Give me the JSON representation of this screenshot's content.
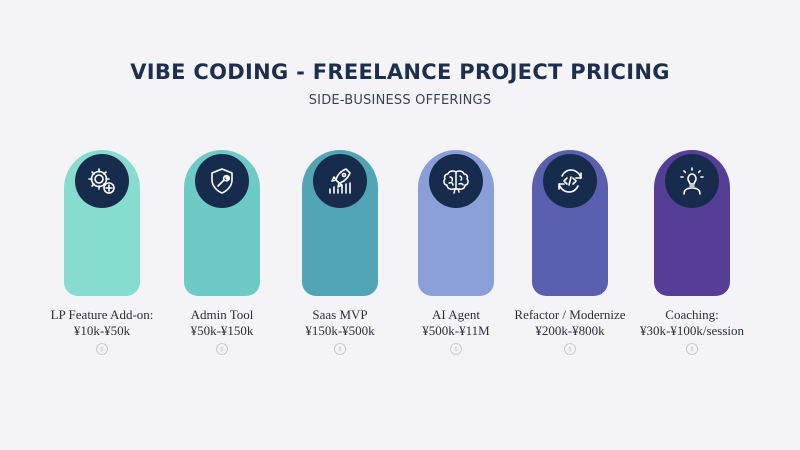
{
  "header": {
    "title": "VIBE CODING - FREELANCE PROJECT PRICING",
    "subtitle": "SIDE-BUSINESS OFFERINGS"
  },
  "offerings": [
    {
      "name": "LP Feature Add-on:",
      "price": "¥10k-¥50k",
      "color": "#86dccf",
      "icon": "gear-plus-icon"
    },
    {
      "name": "Admin Tool",
      "price": "¥50k-¥150k",
      "color": "#6ecac4",
      "icon": "shield-wrench-icon"
    },
    {
      "name": "Saas MVP",
      "price": "¥150k-¥500k",
      "color": "#52a5b4",
      "icon": "rocket-chart-icon"
    },
    {
      "name": "AI Agent",
      "price": "¥500k-¥11M",
      "color": "#8a9fd8",
      "icon": "brain-icon"
    },
    {
      "name": "Refactor / Modernize",
      "price": "¥200k-¥800k",
      "color": "#5a5fae",
      "icon": "code-refresh-icon"
    },
    {
      "name": "Coaching:",
      "price": "¥30k-¥100k/session",
      "color": "#553f96",
      "icon": "lightbulb-person-icon"
    }
  ],
  "colors": {
    "title": "#1e2f4d",
    "icon_circle": "#172c4d",
    "background": "#f4f4f6"
  }
}
